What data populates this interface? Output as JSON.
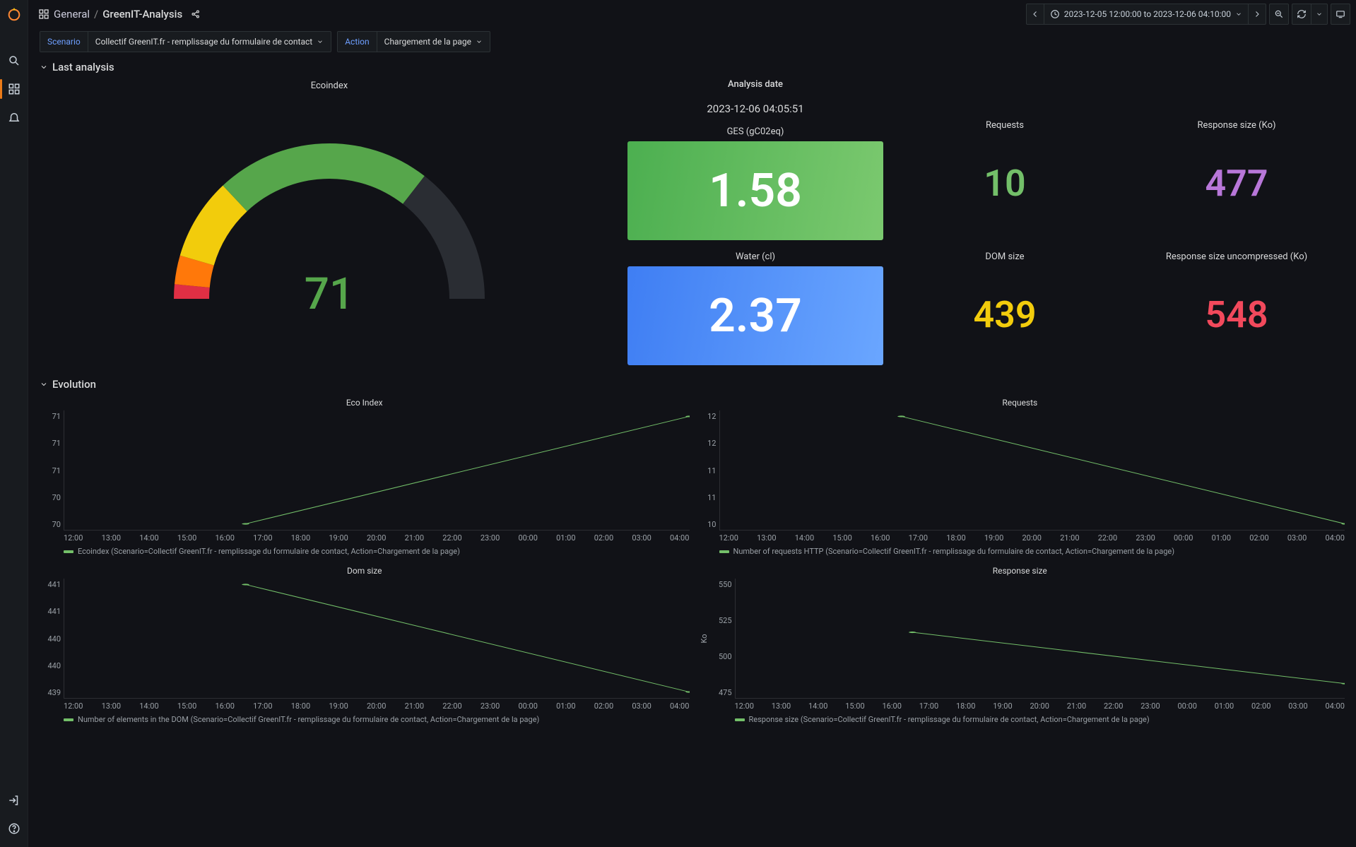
{
  "breadcrumb": {
    "folder": "General",
    "dashboard": "GreenIT-Analysis"
  },
  "time_range": "2023-12-05 12:00:00 to 2023-12-06 04:10:00",
  "variables": {
    "scenario": {
      "label": "Scenario",
      "value": "Collectif GreenIT.fr - remplissage du formulaire de contact"
    },
    "action": {
      "label": "Action",
      "value": "Chargement de la page"
    }
  },
  "rows": {
    "last_analysis": {
      "title": "Last analysis"
    },
    "evolution": {
      "title": "Evolution"
    }
  },
  "analysis_date": {
    "title": "Analysis date",
    "value": "2023-12-06 04:05:51"
  },
  "gauge": {
    "title": "Ecoindex",
    "value": 71,
    "value_color": "#56a64b",
    "arc_segments": [
      {
        "label": "red",
        "color": "#e02f44",
        "span": 0.03
      },
      {
        "label": "orange",
        "color": "#ff780a",
        "span": 0.06
      },
      {
        "label": "yellow",
        "color": "#f2cc0c",
        "span": 0.17
      },
      {
        "label": "green",
        "color": "#56a64b",
        "span": 0.45
      },
      {
        "label": "empty",
        "color": "#2a2d33",
        "span": 0.29
      }
    ]
  },
  "ges": {
    "title": "GES (gC02eq)",
    "value": "1.58",
    "bg_from": "#4caf50",
    "bg_to": "#7bc96f"
  },
  "water": {
    "title": "Water (cl)",
    "value": "2.37",
    "bg_from": "#3f7ef3",
    "bg_to": "#6aa6ff"
  },
  "requests": {
    "title": "Requests",
    "value": "10",
    "color": "#73bf69"
  },
  "dom": {
    "title": "DOM size",
    "value": "439",
    "color": "#f2cc0c"
  },
  "resp": {
    "title": "Response size (Ko)",
    "value": "477",
    "color": "#b877d9"
  },
  "resp_u": {
    "title": "Response size uncompressed (Ko)",
    "value": "548",
    "color": "#f2495c"
  },
  "charts": {
    "ecoindex": {
      "title": "Eco Index",
      "y_ticks": [
        "71",
        "71",
        "71",
        "70",
        "70"
      ],
      "line": {
        "color": "#73bf69",
        "points": [
          [
            0.29,
            0.95
          ],
          [
            1.0,
            0.05
          ]
        ]
      },
      "legend": "Ecoindex (Scenario=Collectif GreenIT.fr - remplissage du formulaire de contact, Action=Chargement de la page)"
    },
    "requests": {
      "title": "Requests",
      "y_ticks": [
        "12",
        "12",
        "11",
        "11",
        "10"
      ],
      "line": {
        "color": "#73bf69",
        "points": [
          [
            0.29,
            0.05
          ],
          [
            1.0,
            0.95
          ]
        ]
      },
      "legend": "Number of requests HTTP (Scenario=Collectif GreenIT.fr - remplissage du formulaire de contact, Action=Chargement de la page)"
    },
    "dom": {
      "title": "Dom size",
      "y_ticks": [
        "441",
        "441",
        "440",
        "440",
        "439"
      ],
      "line": {
        "color": "#73bf69",
        "points": [
          [
            0.29,
            0.05
          ],
          [
            1.0,
            0.95
          ]
        ]
      },
      "legend": "Number of elements in the DOM (Scenario=Collectif GreenIT.fr - remplissage du formulaire de contact, Action=Chargement de la page)"
    },
    "response": {
      "title": "Response size",
      "y_label": "Ko",
      "y_ticks": [
        "550",
        "525",
        "500",
        "475"
      ],
      "line": {
        "color": "#73bf69",
        "points": [
          [
            0.29,
            0.45
          ],
          [
            1.0,
            0.88
          ]
        ]
      },
      "legend": "Response size (Scenario=Collectif GreenIT.fr - remplissage du formulaire de contact, Action=Chargement de la page)"
    },
    "x_ticks": [
      "12:00",
      "13:00",
      "14:00",
      "15:00",
      "16:00",
      "17:00",
      "18:00",
      "19:00",
      "20:00",
      "21:00",
      "22:00",
      "23:00",
      "00:00",
      "01:00",
      "02:00",
      "03:00",
      "04:00"
    ]
  }
}
